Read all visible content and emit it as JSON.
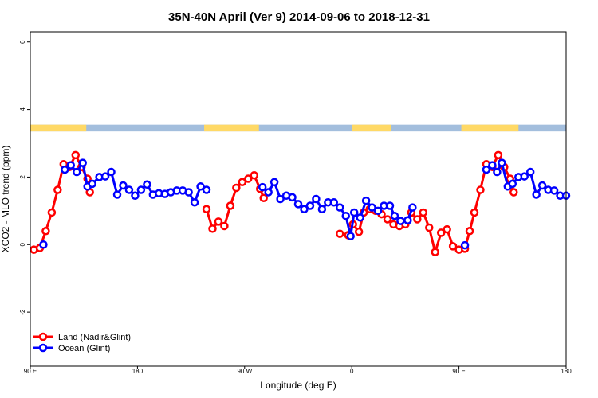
{
  "chart_data": {
    "type": "line",
    "title": "35N-40N April (Ver 9)   2014-09-06 to 2018-12-31",
    "xlabel": "Longitude (deg E)",
    "ylabel": "XCO2 - MLO trend (ppm)",
    "xlim": [
      90,
      540
    ],
    "ylim": [
      -3.6,
      6.3
    ],
    "x_ticks": [
      {
        "value": 90,
        "label": "90 E"
      },
      {
        "value": 180,
        "label": "180"
      },
      {
        "value": 270,
        "label": "90 W"
      },
      {
        "value": 360,
        "label": "0"
      },
      {
        "value": 450,
        "label": "90 E"
      },
      {
        "value": 540,
        "label": "180"
      }
    ],
    "y_ticks": [
      {
        "value": -2,
        "label": "-2"
      },
      {
        "value": 0,
        "label": "0"
      },
      {
        "value": 2,
        "label": "2"
      },
      {
        "value": 4,
        "label": "4"
      },
      {
        "value": 6,
        "label": "6"
      }
    ],
    "colors": {
      "land": "#ff0000",
      "ocean": "#0000ff",
      "land_band": "#ffd966",
      "ocean_band": "#a3bedd"
    },
    "land_band": {
      "y_range": [
        3.35,
        3.55
      ],
      "land_segments": [
        [
          90,
          137
        ],
        [
          236,
          282
        ],
        [
          360,
          393
        ],
        [
          452,
          500
        ]
      ]
    },
    "legend": {
      "position": "bottom-left"
    },
    "series": [
      {
        "name": "Land (Nadir&Glint)",
        "color": "#ff0000",
        "segments": [
          [
            [
              93,
              -0.15
            ],
            [
              98,
              -0.1
            ],
            [
              103,
              0.4
            ],
            [
              108,
              0.95
            ],
            [
              113,
              1.62
            ],
            [
              118,
              2.38
            ],
            [
              123,
              2.3
            ],
            [
              128,
              2.65
            ],
            [
              133,
              2.3
            ],
            [
              138,
              1.95
            ],
            [
              140,
              1.55
            ]
          ],
          [
            [
              238,
              1.05
            ],
            [
              243,
              0.47
            ],
            [
              248,
              0.68
            ],
            [
              253,
              0.55
            ],
            [
              258,
              1.15
            ],
            [
              263,
              1.68
            ],
            [
              268,
              1.85
            ],
            [
              273,
              1.95
            ],
            [
              278,
              2.05
            ],
            [
              283,
              1.65
            ],
            [
              286,
              1.38
            ]
          ],
          [
            [
              350,
              0.32
            ],
            [
              357,
              0.28
            ],
            [
              361,
              0.6
            ],
            [
              366,
              0.38
            ],
            [
              370,
              0.95
            ],
            [
              375,
              1.05
            ],
            [
              380,
              1.0
            ],
            [
              385,
              0.9
            ],
            [
              390,
              0.75
            ],
            [
              395,
              0.6
            ],
            [
              400,
              0.55
            ],
            [
              405,
              0.6
            ],
            [
              410,
              0.95
            ],
            [
              415,
              0.75
            ],
            [
              420,
              0.95
            ],
            [
              425,
              0.5
            ],
            [
              430,
              -0.22
            ],
            [
              435,
              0.35
            ],
            [
              440,
              0.45
            ],
            [
              445,
              -0.05
            ],
            [
              450,
              -0.15
            ],
            [
              455,
              -0.12
            ],
            [
              459,
              0.4
            ],
            [
              463,
              0.95
            ],
            [
              468,
              1.62
            ],
            [
              473,
              2.38
            ],
            [
              478,
              2.3
            ],
            [
              483,
              2.65
            ],
            [
              488,
              2.3
            ],
            [
              493,
              1.95
            ],
            [
              496,
              1.55
            ]
          ]
        ]
      },
      {
        "name": "Ocean (Glint)",
        "color": "#0000ff",
        "segments": [
          [
            [
              101,
              0.0
            ]
          ],
          [
            [
              119,
              2.22
            ],
            [
              124,
              2.35
            ],
            [
              129,
              2.15
            ],
            [
              134,
              2.42
            ],
            [
              138,
              1.72
            ],
            [
              142,
              1.8
            ],
            [
              148,
              2.0
            ],
            [
              153,
              2.02
            ],
            [
              158,
              2.15
            ],
            [
              163,
              1.48
            ],
            [
              168,
              1.75
            ],
            [
              173,
              1.62
            ],
            [
              178,
              1.45
            ],
            [
              183,
              1.62
            ],
            [
              188,
              1.78
            ],
            [
              193,
              1.48
            ],
            [
              198,
              1.52
            ],
            [
              203,
              1.5
            ],
            [
              208,
              1.55
            ],
            [
              213,
              1.6
            ],
            [
              218,
              1.6
            ],
            [
              223,
              1.55
            ],
            [
              228,
              1.25
            ],
            [
              233,
              1.72
            ],
            [
              238,
              1.62
            ]
          ],
          [
            [
              285,
              1.7
            ],
            [
              290,
              1.55
            ],
            [
              295,
              1.85
            ],
            [
              300,
              1.35
            ],
            [
              305,
              1.45
            ],
            [
              310,
              1.4
            ],
            [
              315,
              1.2
            ],
            [
              320,
              1.05
            ],
            [
              325,
              1.15
            ],
            [
              330,
              1.35
            ],
            [
              335,
              1.05
            ],
            [
              340,
              1.25
            ],
            [
              345,
              1.25
            ],
            [
              350,
              1.1
            ],
            [
              355,
              0.85
            ],
            [
              359,
              0.25
            ],
            [
              362,
              0.95
            ],
            [
              367,
              0.8
            ],
            [
              372,
              1.3
            ],
            [
              377,
              1.1
            ],
            [
              382,
              1.0
            ],
            [
              387,
              1.15
            ],
            [
              392,
              1.15
            ],
            [
              396,
              0.85
            ],
            [
              401,
              0.7
            ],
            [
              407,
              0.72
            ],
            [
              411,
              1.1
            ]
          ],
          [
            [
              455,
              -0.02
            ]
          ],
          [
            [
              473,
              2.22
            ],
            [
              478,
              2.35
            ],
            [
              482,
              2.15
            ],
            [
              486,
              2.42
            ],
            [
              491,
              1.72
            ],
            [
              495,
              1.8
            ],
            [
              500,
              2.0
            ],
            [
              505,
              2.02
            ],
            [
              510,
              2.15
            ],
            [
              515,
              1.48
            ],
            [
              520,
              1.75
            ],
            [
              525,
              1.62
            ],
            [
              530,
              1.6
            ],
            [
              535,
              1.45
            ],
            [
              540,
              1.45
            ]
          ]
        ]
      }
    ]
  }
}
